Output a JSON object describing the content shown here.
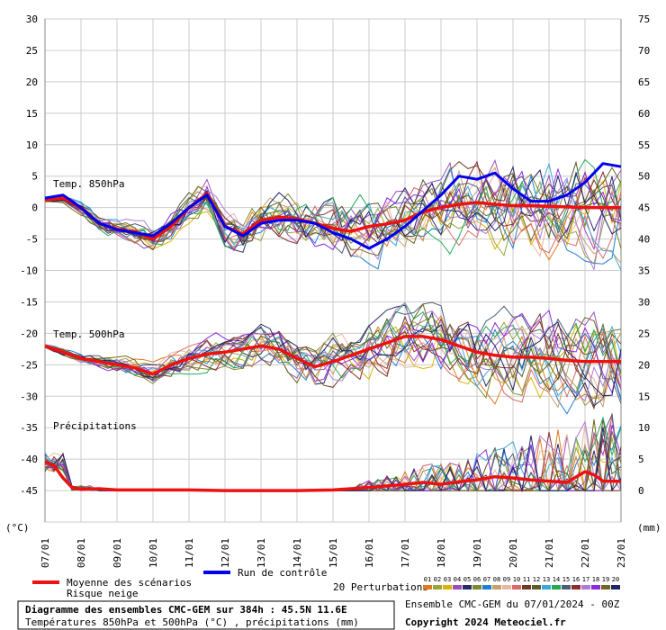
{
  "chart_data": {
    "type": "line",
    "title": "Diagramme des ensembles CMC-GEM sur 384h : 45.5N 11.6E",
    "subtitle": "Températures 850hPa et 500hPa (°C) , précipitations (mm)",
    "run_info": "Ensemble CMC-GEM du 07/01/2024 - 00Z",
    "copyright": "Copyright 2024 Meteociel.fr",
    "ylabel_left": "(°C)",
    "ylabel_right": "(mm)",
    "ylim_left": [
      -50,
      30
    ],
    "ylim_right": [
      -5,
      75
    ],
    "yticks_left": [
      30,
      25,
      20,
      15,
      10,
      5,
      0,
      -5,
      -10,
      -15,
      -20,
      -25,
      -30,
      -35,
      -40,
      -45
    ],
    "yticks_right": [
      75,
      70,
      65,
      60,
      55,
      50,
      45,
      40,
      35,
      30,
      25,
      20,
      15,
      10,
      5,
      0
    ],
    "x_range_days": [
      0,
      16
    ],
    "x_tick_labels": [
      "07/01",
      "08/01",
      "09/01",
      "10/01",
      "11/01",
      "12/01",
      "13/01",
      "14/01",
      "15/01",
      "16/01",
      "17/01",
      "18/01",
      "19/01",
      "20/01",
      "21/01",
      "22/01",
      "23/01"
    ],
    "section_labels": {
      "t850": "Temp. 850hPa",
      "t500": "Temp. 500hPa",
      "precip": "Précipitations"
    },
    "legend": {
      "mean_label": "Moyenne des scénarios",
      "snow_label": "Risque neige",
      "control_label": "Run de contrôle",
      "perturb_label": "20 Perturbations",
      "perturb_ids": [
        "01",
        "02",
        "03",
        "04",
        "05",
        "06",
        "07",
        "08",
        "09",
        "10",
        "11",
        "12",
        "13",
        "14",
        "15",
        "16",
        "17",
        "18",
        "19",
        "20"
      ]
    },
    "colors": {
      "mean": "#ee1111",
      "control": "#0000ee",
      "grid": "#cccccc",
      "perturbations": [
        "#e07a1f",
        "#9aa43b",
        "#d9b300",
        "#9b4fbf",
        "#2b2b6b",
        "#7c8a2e",
        "#1f7fd6",
        "#c8a06a",
        "#e7b8a0",
        "#d96a6a",
        "#6b3a1f",
        "#5a5a2a",
        "#3aa9d9",
        "#22aa55",
        "#4a5f7a",
        "#8c2e2e",
        "#b07ad9",
        "#8a2be2",
        "#6b6b20",
        "#222266"
      ]
    },
    "series": [
      {
        "name": "Moyenne T850",
        "x": [
          0,
          0.5,
          1,
          1.5,
          2,
          2.5,
          3,
          3.5,
          4,
          4.5,
          5,
          5.5,
          6,
          6.5,
          7,
          7.5,
          8,
          8.5,
          9,
          9.5,
          10,
          10.5,
          11,
          11.5,
          12,
          12.5,
          13,
          13.5,
          14,
          14.5,
          15,
          15.5,
          16
        ],
        "values": [
          1.2,
          1.5,
          0,
          -2.5,
          -3.5,
          -3.8,
          -5,
          -3,
          0,
          2.2,
          -3,
          -4.2,
          -2,
          -1.5,
          -1.8,
          -2.5,
          -3.3,
          -3.8,
          -3,
          -2.6,
          -2,
          -0.7,
          0,
          0.5,
          0.8,
          0.5,
          0.3,
          0.3,
          0.2,
          0.1,
          0,
          0,
          0
        ]
      },
      {
        "name": "Contrôle T850",
        "x": [
          0,
          0.5,
          1,
          1.5,
          2,
          2.5,
          3,
          3.5,
          4,
          4.5,
          5,
          5.5,
          6,
          6.5,
          7,
          7.5,
          8,
          8.5,
          9,
          9.5,
          10,
          10.5,
          11,
          11.5,
          12,
          12.5,
          13,
          13.5,
          14,
          14.5,
          15,
          15.5,
          16
        ],
        "values": [
          1.5,
          2,
          0,
          -2.5,
          -3.5,
          -4,
          -4.5,
          -2.5,
          0,
          2,
          -3,
          -4.5,
          -2.5,
          -2,
          -2,
          -2.5,
          -4,
          -5,
          -6.5,
          -5,
          -3,
          -0.5,
          2,
          5,
          4.5,
          5.5,
          3,
          1,
          1,
          2,
          4,
          7,
          6.5
        ]
      },
      {
        "name": "Moyenne T500",
        "x": [
          0,
          0.5,
          1,
          1.5,
          2,
          2.5,
          3,
          3.5,
          4,
          4.5,
          5,
          5.5,
          6,
          6.5,
          7,
          7.5,
          8,
          8.5,
          9,
          9.5,
          10,
          10.5,
          11,
          11.5,
          12,
          12.5,
          13,
          13.5,
          14,
          14.5,
          15,
          15.5,
          16
        ],
        "values": [
          -22,
          -23,
          -24,
          -24.5,
          -25,
          -25.5,
          -26.5,
          -25,
          -24,
          -23.3,
          -23,
          -22.5,
          -22,
          -22.5,
          -24,
          -25.3,
          -24.5,
          -23.5,
          -22.5,
          -21.5,
          -20.5,
          -20.5,
          -21,
          -22,
          -23,
          -23.5,
          -23.8,
          -23.8,
          -24,
          -24.3,
          -24.5,
          -24.5,
          -24.5
        ]
      },
      {
        "name": "Moyenne précipitations (mm)",
        "x": [
          0,
          0.25,
          0.5,
          0.75,
          1,
          1.5,
          2,
          3,
          4,
          5,
          6,
          7,
          8,
          9,
          10,
          10.5,
          11,
          11.5,
          12,
          12.5,
          13,
          13.5,
          14,
          14.5,
          15,
          15.25,
          15.5,
          16
        ],
        "values": [
          4.5,
          4,
          2,
          0.5,
          0.2,
          0.3,
          0.1,
          0.1,
          0.1,
          0,
          0,
          0,
          0.1,
          0.5,
          1,
          1.3,
          1,
          1.4,
          1.7,
          2.2,
          2,
          1.7,
          1.5,
          1.3,
          3,
          2.5,
          1.5,
          1.5
        ]
      }
    ]
  }
}
